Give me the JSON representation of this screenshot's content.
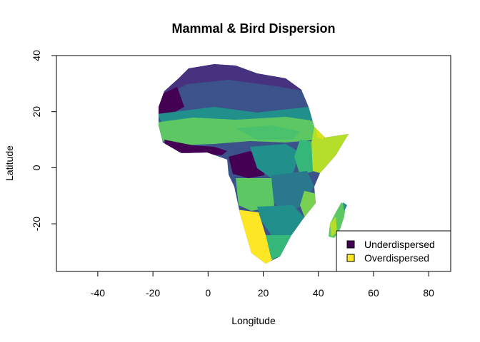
{
  "chart_data": {
    "type": "map",
    "title": "Mammal & Bird Dispersion",
    "xlabel": "Longitude",
    "ylabel": "Latitude",
    "xlim": [
      -55,
      88
    ],
    "ylim": [
      -37,
      40
    ],
    "xticks": [
      -40,
      -20,
      0,
      20,
      40,
      60,
      80
    ],
    "yticks": [
      -20,
      0,
      20,
      40
    ],
    "legend": {
      "position": "bottom-right",
      "entries": [
        {
          "label": "Underdispersed",
          "color": "#440154"
        },
        {
          "label": "Overdispersed",
          "color": "#FDE725"
        }
      ]
    },
    "palette": [
      "#440154",
      "#3B528B",
      "#21908C",
      "#5DC863",
      "#FDE725"
    ],
    "region": "Africa and Madagascar"
  }
}
